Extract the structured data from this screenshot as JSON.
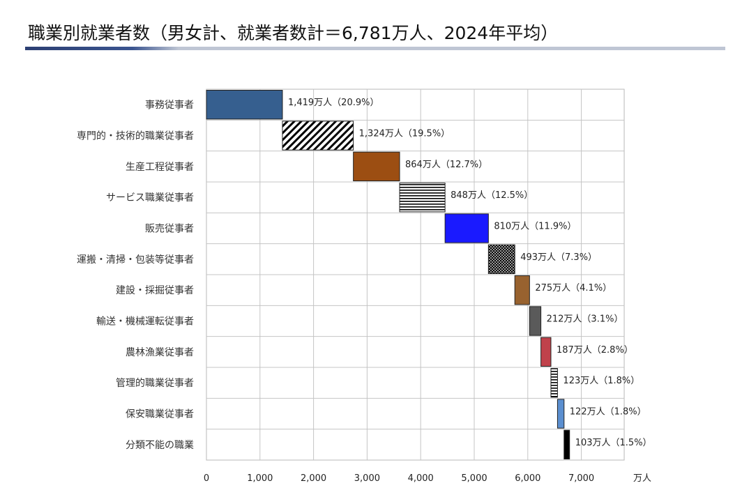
{
  "page": {
    "title": "職業別就業者数（男女計、就業者数計＝6,781万人、2024年平均）"
  },
  "chart_data": {
    "type": "bar",
    "subtype": "waterfall-horizontal",
    "total": 6781,
    "unit": "万人",
    "x_unit_label": "万人",
    "xlim": [
      0,
      7800
    ],
    "x_ticks": [
      0,
      1000,
      2000,
      3000,
      4000,
      5000,
      6000,
      7000
    ],
    "x_tick_labels": [
      "0",
      "1,000",
      "2,000",
      "3,000",
      "4,000",
      "5,000",
      "6,000",
      "7,000"
    ],
    "grid": true,
    "categories": [
      "事務従事者",
      "専門的・技術的職業従事者",
      "生産工程従事者",
      "サービス職業従事者",
      "販売従事者",
      "運搬・清掃・包装等従事者",
      "建設・採掘従事者",
      "輸送・機械運転従事者",
      "農林漁業従事者",
      "管理的職業従事者",
      "保安職業従事者",
      "分類不能の職業"
    ],
    "values": [
      1419,
      1324,
      864,
      848,
      810,
      493,
      275,
      212,
      187,
      123,
      122,
      103
    ],
    "percents": [
      20.9,
      19.5,
      12.7,
      12.5,
      11.9,
      7.3,
      4.1,
      3.1,
      2.8,
      1.8,
      1.8,
      1.5
    ],
    "value_labels": [
      "1,419万人（20.9%）",
      "1,324万人（19.5%）",
      "864万人（12.7%）",
      "848万人（12.5%）",
      "810万人（11.9%）",
      "493万人（7.3%）",
      "275万人（4.1%）",
      "212万人（3.1%）",
      "187万人（2.8%）",
      "123万人（1.8%）",
      "122万人（1.8%）",
      "103万人（1.5%）"
    ],
    "bar_fills": [
      "solid:#365f8f",
      "hatch-diagonal",
      "solid:#9c4e12",
      "hatch-horizontal",
      "solid:#1a1aff",
      "hatch-crosshatch",
      "solid:#98622f",
      "solid:#5a5a5a",
      "solid:#c0424b",
      "hatch-horizontal",
      "solid:#5b8fd0",
      "solid:#000000"
    ]
  }
}
